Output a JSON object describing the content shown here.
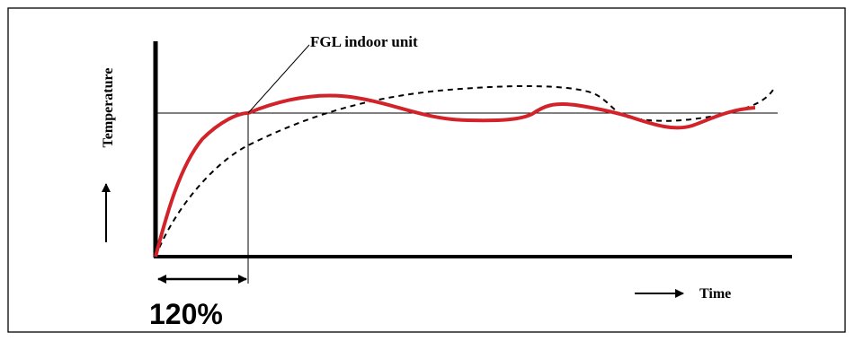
{
  "labels": {
    "y_axis": "Temperature",
    "x_axis": "Time",
    "callout": "FGL indoor unit",
    "percentage": "120%"
  },
  "colors": {
    "frame": "#000000",
    "axes": "#000000",
    "fgl_curve": "#d2232a",
    "comparison_curve": "#000000",
    "target_line": "#000000",
    "background": "#ffffff"
  },
  "icons": {
    "y_axis_arrow": "arrow-up-icon",
    "x_axis_arrow": "arrow-right-icon",
    "interval_arrow": "double-arrow-icon"
  }
}
